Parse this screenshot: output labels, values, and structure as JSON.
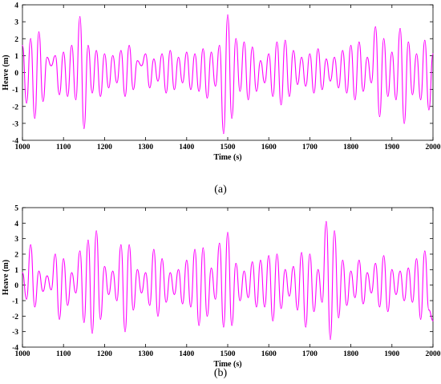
{
  "figure": {
    "colors": {
      "series": "#ff00ff",
      "axis": "#000000",
      "background": "#ffffff"
    }
  },
  "chart_data": [
    {
      "type": "line",
      "caption": "(a)",
      "xlabel": "Time (s)",
      "ylabel": "Heave (m)",
      "xlim": [
        1000,
        2000
      ],
      "ylim": [
        -4,
        4
      ],
      "x_ticks": [
        1000,
        1100,
        1200,
        1300,
        1400,
        1500,
        1600,
        1700,
        1800,
        1900,
        2000
      ],
      "y_ticks": [
        -4,
        -3,
        -2,
        -1,
        0,
        1,
        2,
        3,
        4
      ],
      "grid": false,
      "legend": "none",
      "series": [
        {
          "color": "#ff00ff",
          "x": [
            1000,
            1010,
            1020,
            1030,
            1040,
            1050,
            1060,
            1070,
            1080,
            1090,
            1100,
            1110,
            1120,
            1130,
            1140,
            1150,
            1160,
            1170,
            1180,
            1190,
            1200,
            1210,
            1220,
            1230,
            1240,
            1250,
            1260,
            1270,
            1280,
            1290,
            1300,
            1310,
            1320,
            1330,
            1340,
            1350,
            1360,
            1370,
            1380,
            1390,
            1400,
            1410,
            1420,
            1430,
            1440,
            1450,
            1460,
            1470,
            1480,
            1490,
            1500,
            1510,
            1520,
            1530,
            1540,
            1550,
            1560,
            1570,
            1580,
            1590,
            1600,
            1610,
            1620,
            1630,
            1640,
            1650,
            1660,
            1670,
            1680,
            1690,
            1700,
            1710,
            1720,
            1730,
            1740,
            1750,
            1760,
            1770,
            1780,
            1790,
            1800,
            1810,
            1820,
            1830,
            1840,
            1850,
            1860,
            1870,
            1880,
            1890,
            1900,
            1910,
            1920,
            1930,
            1940,
            1950,
            1960,
            1970,
            1980,
            1990,
            2000
          ],
          "y": [
            1.6,
            -1.8,
            2.0,
            -2.7,
            2.4,
            -1.7,
            0.9,
            0.4,
            1.0,
            -1.3,
            1.2,
            -1.4,
            1.6,
            -1.6,
            3.3,
            -3.3,
            1.6,
            -1.2,
            1.3,
            -1.4,
            1.1,
            -0.9,
            1.0,
            -0.6,
            1.3,
            -1.4,
            1.6,
            -1.0,
            0.7,
            0.4,
            1.1,
            -0.9,
            0.8,
            -0.5,
            1.1,
            -1.2,
            1.3,
            -1.0,
            0.9,
            -0.6,
            1.2,
            -1.0,
            1.1,
            -1.1,
            1.4,
            -1.5,
            1.2,
            -0.8,
            1.6,
            -3.6,
            3.4,
            -2.7,
            2.0,
            -1.1,
            1.8,
            -1.6,
            1.5,
            -1.1,
            0.7,
            -0.6,
            1.1,
            -1.4,
            1.8,
            -1.9,
            1.9,
            -1.4,
            1.3,
            -0.7,
            0.9,
            -0.8,
            1.1,
            -1.2,
            1.4,
            -1.0,
            0.8,
            -0.5,
            0.9,
            -0.9,
            1.3,
            -1.2,
            1.6,
            -1.6,
            1.8,
            -1.1,
            0.9,
            -0.6,
            2.7,
            -2.6,
            2.0,
            -1.4,
            1.2,
            -1.6,
            2.6,
            -3.0,
            1.8,
            -1.3,
            1.1,
            -1.6,
            1.9,
            -2.2,
            1.1
          ]
        }
      ]
    },
    {
      "type": "line",
      "caption": "(b)",
      "xlabel": "Time (s)",
      "ylabel": "Heave (m)",
      "xlim": [
        1000,
        2000
      ],
      "ylim": [
        -4,
        5
      ],
      "x_ticks": [
        1000,
        1100,
        1200,
        1300,
        1400,
        1500,
        1600,
        1700,
        1800,
        1900,
        2000
      ],
      "y_ticks": [
        -4,
        -3,
        -2,
        -1,
        0,
        1,
        2,
        3,
        4,
        5
      ],
      "grid": false,
      "legend": "none",
      "series": [
        {
          "color": "#ff00ff",
          "x": [
            1000,
            1010,
            1020,
            1030,
            1040,
            1050,
            1060,
            1070,
            1080,
            1090,
            1100,
            1110,
            1120,
            1130,
            1140,
            1150,
            1160,
            1170,
            1180,
            1190,
            1200,
            1210,
            1220,
            1230,
            1240,
            1250,
            1260,
            1270,
            1280,
            1290,
            1300,
            1310,
            1320,
            1330,
            1340,
            1350,
            1360,
            1370,
            1380,
            1390,
            1400,
            1410,
            1420,
            1430,
            1440,
            1450,
            1460,
            1470,
            1480,
            1490,
            1500,
            1510,
            1520,
            1530,
            1540,
            1550,
            1560,
            1570,
            1580,
            1590,
            1600,
            1610,
            1620,
            1630,
            1640,
            1650,
            1660,
            1670,
            1680,
            1690,
            1700,
            1710,
            1720,
            1730,
            1740,
            1750,
            1760,
            1770,
            1780,
            1790,
            1800,
            1810,
            1820,
            1830,
            1840,
            1850,
            1860,
            1870,
            1880,
            1890,
            1900,
            1910,
            1920,
            1930,
            1940,
            1950,
            1960,
            1970,
            1980,
            1990,
            2000
          ],
          "y": [
            0.8,
            -0.9,
            2.6,
            -1.4,
            0.9,
            -0.4,
            0.6,
            -0.3,
            2.0,
            -2.2,
            1.7,
            -1.3,
            0.8,
            -0.5,
            2.2,
            -2.4,
            2.9,
            -3.1,
            3.5,
            -2.2,
            1.2,
            -0.6,
            0.9,
            -1.0,
            2.6,
            -3.0,
            2.6,
            -1.6,
            1.0,
            -0.5,
            0.8,
            -1.3,
            2.3,
            -2.0,
            1.7,
            -1.1,
            0.8,
            -0.6,
            1.0,
            -1.2,
            1.6,
            -1.4,
            2.3,
            -2.6,
            2.4,
            -2.0,
            1.1,
            -0.9,
            2.7,
            -2.7,
            3.4,
            -2.6,
            1.4,
            -1.0,
            0.9,
            -0.8,
            1.5,
            -1.4,
            1.6,
            -1.4,
            1.9,
            -2.3,
            2.0,
            -1.5,
            1.0,
            -0.7,
            1.2,
            -1.6,
            2.1,
            -2.7,
            2.0,
            -1.7,
            1.0,
            -1.1,
            4.1,
            -3.5,
            3.5,
            -2.1,
            1.6,
            -1.3,
            0.9,
            -0.8,
            1.6,
            -1.2,
            0.8,
            -0.5,
            1.4,
            -1.4,
            1.9,
            -1.7,
            1.0,
            -0.6,
            0.9,
            -1.0,
            1.1,
            -1.1,
            1.7,
            -2.2,
            2.2,
            -1.6,
            -2.3
          ]
        }
      ]
    }
  ]
}
